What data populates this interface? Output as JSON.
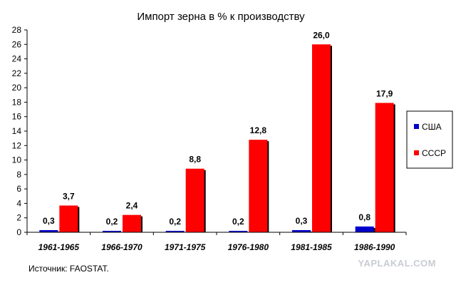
{
  "chart_data": {
    "type": "bar",
    "title": "Импорт зерна в % к производству",
    "categories": [
      "1961-1965",
      "1966-1970",
      "1971-1975",
      "1976-1980",
      "1981-1985",
      "1986-1990"
    ],
    "series": [
      {
        "name": "США",
        "color": "#0000cc",
        "values": [
          0.3,
          0.2,
          0.2,
          0.2,
          0.3,
          0.8
        ],
        "labels": [
          "0,3",
          "0,2",
          "0,2",
          "0,2",
          "0,3",
          "0,8"
        ]
      },
      {
        "name": "СССР",
        "color": "#ff0000",
        "values": [
          3.7,
          2.4,
          8.8,
          12.8,
          26.0,
          17.9
        ],
        "labels": [
          "3,7",
          "2,4",
          "8,8",
          "12,8",
          "26,0",
          "17,9"
        ]
      }
    ],
    "ylim": [
      0,
      28
    ],
    "yticks": [
      "0",
      "2",
      "4",
      "6",
      "8",
      "10",
      "12",
      "14",
      "16",
      "18",
      "20",
      "22",
      "24",
      "26",
      "28"
    ],
    "grid": false,
    "legend_position": "right"
  },
  "footer": {
    "source": "Источник: FAOSTAT.",
    "watermark": "YAPLAKAL.COM"
  }
}
